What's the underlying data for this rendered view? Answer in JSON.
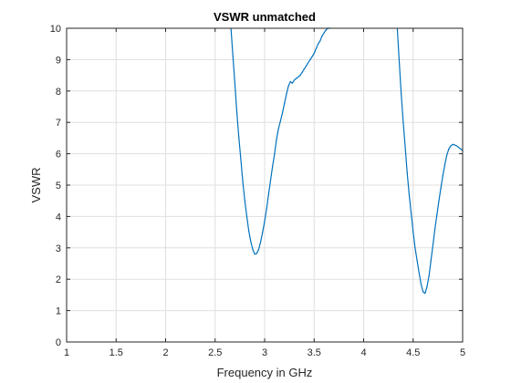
{
  "chart_data": {
    "type": "line",
    "title": "VSWR unmatched",
    "xlabel": "Frequency in GHz",
    "ylabel": "VSWR",
    "xlim": [
      1,
      5
    ],
    "ylim": [
      0,
      10
    ],
    "xticks": [
      1,
      1.5,
      2,
      2.5,
      3,
      3.5,
      4,
      4.5,
      5
    ],
    "xtick_labels": [
      "1",
      "1.5",
      "2",
      "2.5",
      "3",
      "3.5",
      "4",
      "4.5",
      "5"
    ],
    "yticks": [
      0,
      1,
      2,
      3,
      4,
      5,
      6,
      7,
      8,
      9,
      10
    ],
    "ytick_labels": [
      "0",
      "1",
      "2",
      "3",
      "4",
      "5",
      "6",
      "7",
      "8",
      "9",
      "10"
    ],
    "grid": true,
    "colors": {
      "series": "#0072bd",
      "grid": "#dfdfdf",
      "axes": "#262626"
    },
    "series": [
      {
        "segments": [
          {
            "x": [
              2.66,
              2.68,
              2.7,
              2.72,
              2.74,
              2.76,
              2.78,
              2.8,
              2.82,
              2.84,
              2.86,
              2.88,
              2.9,
              2.92,
              2.94,
              2.96,
              2.98,
              3.0,
              3.02,
              3.04,
              3.06,
              3.08,
              3.1,
              3.12,
              3.14,
              3.16,
              3.18,
              3.2,
              3.22,
              3.24,
              3.26,
              3.28,
              3.3,
              3.32,
              3.34,
              3.36,
              3.38,
              3.4,
              3.42,
              3.44,
              3.46,
              3.48,
              3.5,
              3.52,
              3.54,
              3.56,
              3.58,
              3.6,
              3.62,
              3.64,
              3.66
            ],
            "y": [
              10.0,
              9.1,
              8.2,
              7.3,
              6.5,
              5.8,
              5.1,
              4.5,
              4.0,
              3.55,
              3.2,
              2.95,
              2.8,
              2.82,
              2.95,
              3.2,
              3.5,
              3.85,
              4.25,
              4.7,
              5.15,
              5.6,
              6.0,
              6.45,
              6.8,
              7.05,
              7.3,
              7.6,
              7.9,
              8.15,
              8.3,
              8.25,
              8.35,
              8.4,
              8.45,
              8.5,
              8.6,
              8.7,
              8.8,
              8.9,
              9.0,
              9.1,
              9.2,
              9.35,
              9.5,
              9.6,
              9.75,
              9.85,
              9.95,
              10.0,
              10.0
            ]
          },
          {
            "x": [
              4.34,
              4.36,
              4.38,
              4.4,
              4.42,
              4.44,
              4.46,
              4.48,
              4.5,
              4.52,
              4.54,
              4.56,
              4.58,
              4.6,
              4.62,
              4.64,
              4.66,
              4.68,
              4.7,
              4.72,
              4.74,
              4.76,
              4.78,
              4.8,
              4.82,
              4.84,
              4.86,
              4.88,
              4.9,
              4.92,
              4.94,
              4.96,
              4.98,
              5.0
            ],
            "y": [
              10.0,
              8.9,
              7.9,
              7.0,
              6.2,
              5.4,
              4.7,
              4.1,
              3.5,
              3.0,
              2.6,
              2.2,
              1.85,
              1.6,
              1.55,
              1.75,
              2.1,
              2.6,
              3.1,
              3.6,
              4.05,
              4.5,
              4.9,
              5.3,
              5.65,
              5.95,
              6.15,
              6.25,
              6.3,
              6.28,
              6.25,
              6.2,
              6.15,
              6.1
            ]
          }
        ]
      }
    ]
  }
}
